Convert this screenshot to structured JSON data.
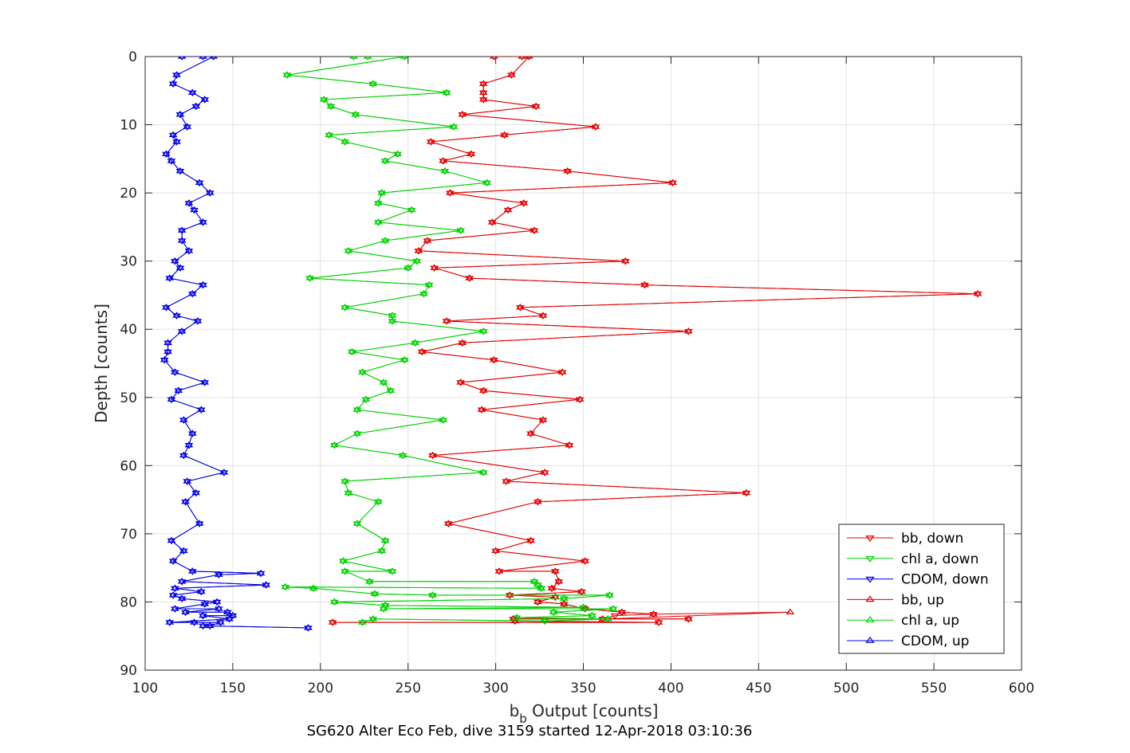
{
  "chart_data": {
    "type": "line",
    "title": "",
    "xlabel_main": "b",
    "xlabel_sub": "b",
    "xlabel_rest": " Output [counts]",
    "ylabel": "Depth [counts]",
    "caption": "SG620 Alter Eco Feb, dive 3159 started 12-Apr-2018 03:10:36",
    "xlim": [
      100,
      600
    ],
    "ylim": [
      0,
      90
    ],
    "y_reversed": true,
    "grid": true,
    "legend_placement": "bottom-right",
    "xticks": [
      "100",
      "150",
      "200",
      "250",
      "300",
      "350",
      "400",
      "450",
      "500",
      "550",
      "600"
    ],
    "yticks": [
      "0",
      "10",
      "20",
      "30",
      "40",
      "50",
      "60",
      "70",
      "80",
      "90"
    ],
    "series": [
      {
        "name": "bb, down",
        "color": "#e00000",
        "marker": "triangle-down",
        "x": [
          299,
          315,
          319,
          309,
          293,
          293,
          293,
          323,
          281,
          357,
          305,
          263,
          286,
          270,
          341,
          401,
          274,
          316,
          307,
          298,
          322,
          261,
          256,
          374,
          265,
          285,
          385,
          575,
          314,
          327,
          272,
          410,
          281,
          258,
          299,
          338,
          280,
          293,
          348,
          292,
          327,
          320,
          342,
          264,
          328,
          306,
          443,
          324,
          273,
          320,
          300,
          351,
          302,
          334,
          336,
          332,
          349,
          308,
          334,
          324,
          339,
          351,
          372,
          390,
          368,
          361,
          410,
          310,
          311,
          393,
          207
        ],
        "y": [
          0,
          0,
          0,
          2.7,
          4,
          5.3,
          6.3,
          7.3,
          8.5,
          10.3,
          11.5,
          12.5,
          14.3,
          15.3,
          16.8,
          18.5,
          20,
          21.5,
          22.5,
          24.3,
          25.5,
          27,
          28.5,
          30,
          31,
          32.5,
          33.5,
          34.8,
          36.8,
          38,
          38.8,
          40.3,
          42,
          43.3,
          44.5,
          46.3,
          47.8,
          49,
          50.3,
          51.8,
          53.3,
          55.3,
          57,
          58.5,
          61,
          62.3,
          64,
          65.3,
          68.5,
          71,
          72.5,
          74,
          75.5,
          75.5,
          77,
          78,
          78.5,
          79,
          79.3,
          80,
          80.3,
          81,
          81.5,
          81.8,
          82,
          82.5,
          82.5,
          82.5,
          82.8,
          83,
          83
        ]
      },
      {
        "name": "chl a, down",
        "color": "#00d000",
        "marker": "triangle-down",
        "x": [
          219,
          227,
          248,
          181,
          230,
          272,
          202,
          206,
          220,
          276,
          205,
          214,
          244,
          237,
          271,
          295,
          235,
          233,
          252,
          233,
          280,
          237,
          216,
          255,
          250,
          194,
          262,
          259,
          214,
          241,
          241,
          293,
          254,
          218,
          248,
          224,
          236,
          240,
          226,
          221,
          270,
          221,
          208,
          247,
          293,
          214,
          216,
          233,
          221,
          237,
          235,
          213,
          241,
          214,
          228,
          322,
          324,
          326,
          326,
          180,
          196,
          231,
          264,
          365,
          339,
          208,
          237,
          350,
          236,
          367,
          333,
          355,
          312,
          364,
          328,
          230,
          224
        ],
        "y": [
          0,
          0,
          0,
          2.7,
          4,
          5.3,
          6.3,
          7.3,
          8.5,
          10.3,
          11.5,
          12.5,
          14.3,
          15.3,
          16.8,
          18.5,
          20,
          21.5,
          22.5,
          24.3,
          25.5,
          27,
          28.5,
          30,
          31,
          32.5,
          33.5,
          34.8,
          36.8,
          38,
          38.8,
          40.3,
          42,
          43.3,
          44.5,
          46.3,
          47.8,
          49,
          50.3,
          51.8,
          53.3,
          55.3,
          57,
          58.5,
          61,
          62.3,
          64,
          65.3,
          68.5,
          71,
          72.5,
          74,
          75.5,
          75.5,
          77,
          77,
          77.5,
          78,
          78,
          77.8,
          78,
          78.8,
          79,
          79,
          79.5,
          80,
          80.5,
          80.8,
          81,
          81,
          81.5,
          82,
          82.3,
          82.5,
          82.8,
          82.5,
          83
        ]
      },
      {
        "name": "CDOM, down",
        "color": "#0000e0",
        "marker": "triangle-down",
        "x": [
          121,
          133,
          139,
          118,
          116,
          127,
          134,
          129,
          120,
          124,
          116,
          118,
          112,
          115,
          120,
          131,
          137,
          125,
          128,
          133,
          121,
          121,
          125,
          117,
          120,
          114,
          133,
          127,
          112,
          118,
          130,
          121,
          113,
          113,
          111,
          117,
          134,
          119,
          115,
          132,
          122,
          127,
          125,
          122,
          145,
          124,
          129,
          123,
          131,
          115,
          122,
          116,
          127,
          166,
          142,
          121,
          169,
          117,
          132,
          116,
          121,
          141,
          134,
          117,
          142,
          123,
          147,
          150,
          133,
          148,
          114,
          128,
          143,
          137,
          133,
          193
        ],
        "y": [
          0,
          0,
          0,
          2.7,
          4,
          5.3,
          6.3,
          7.3,
          8.5,
          10.3,
          11.5,
          12.5,
          14.3,
          15.3,
          16.8,
          18.5,
          20,
          21.5,
          22.5,
          24.3,
          25.5,
          27,
          28.5,
          30,
          31,
          32.5,
          33.5,
          34.8,
          36.8,
          38,
          38.8,
          40.3,
          42,
          43.3,
          44.5,
          46.3,
          47.8,
          49,
          50.3,
          51.8,
          53.3,
          55.3,
          57,
          58.5,
          61,
          62.3,
          64,
          65.3,
          68.5,
          71,
          72.5,
          74,
          75.5,
          75.8,
          76,
          77,
          77.5,
          78,
          78.5,
          79,
          79.5,
          80,
          80.3,
          81,
          81,
          81.5,
          81.5,
          82,
          82,
          82.5,
          83,
          83,
          83,
          83.5,
          83.5,
          83.8
        ]
      },
      {
        "name": "bb, up",
        "color": "#e00000",
        "marker": "triangle-up",
        "x": [
          299,
          315,
          319,
          309,
          293,
          293,
          293,
          323,
          281,
          357,
          305,
          263,
          286,
          270,
          341,
          401,
          274,
          316,
          307,
          298,
          322,
          261,
          256,
          374,
          265,
          285,
          385,
          575,
          314,
          327,
          272,
          410,
          281,
          258,
          299,
          338,
          280,
          293,
          348,
          292,
          327,
          320,
          342,
          264,
          328,
          306,
          443,
          324,
          273,
          320,
          300,
          351,
          302,
          334,
          336,
          332,
          349,
          308,
          334,
          324,
          339,
          351,
          372,
          390,
          468,
          361,
          410,
          310,
          311,
          393,
          207
        ],
        "y": [
          0,
          0,
          0,
          2.7,
          4,
          5.3,
          6.3,
          7.3,
          8.5,
          10.3,
          11.5,
          12.5,
          14.3,
          15.3,
          16.8,
          18.5,
          20,
          21.5,
          22.5,
          24.3,
          25.5,
          27,
          28.5,
          30,
          31,
          32.5,
          33.5,
          34.8,
          36.8,
          38,
          38.8,
          40.3,
          42,
          43.3,
          44.5,
          46.3,
          47.8,
          49,
          50.3,
          51.8,
          53.3,
          55.3,
          57,
          58.5,
          61,
          62.3,
          64,
          65.3,
          68.5,
          71,
          72.5,
          74,
          75.5,
          75.5,
          77,
          78,
          78.5,
          79,
          79.3,
          80,
          80.3,
          81,
          81.5,
          81.8,
          81.5,
          82.5,
          82.5,
          82.5,
          82.8,
          83,
          83
        ]
      },
      {
        "name": "chl a, up",
        "color": "#00d000",
        "marker": "triangle-up",
        "x": [
          219,
          227,
          248,
          181,
          230,
          272,
          202,
          206,
          220,
          276,
          205,
          214,
          244,
          237,
          271,
          295,
          235,
          233,
          252,
          233,
          280,
          237,
          216,
          255,
          250,
          194,
          262,
          259,
          214,
          241,
          241,
          293,
          254,
          218,
          248,
          224,
          236,
          240,
          226,
          221,
          270,
          221,
          208,
          247,
          293,
          214,
          216,
          233,
          221,
          237,
          235,
          213,
          241,
          214,
          228,
          322,
          324,
          326,
          326,
          180,
          196,
          231,
          264,
          365,
          339,
          208,
          237,
          350,
          236,
          367,
          333,
          355,
          312,
          364,
          328,
          230,
          224
        ],
        "y": [
          0,
          0,
          0,
          2.7,
          4,
          5.3,
          6.3,
          7.3,
          8.5,
          10.3,
          11.5,
          12.5,
          14.3,
          15.3,
          16.8,
          18.5,
          20,
          21.5,
          22.5,
          24.3,
          25.5,
          27,
          28.5,
          30,
          31,
          32.5,
          33.5,
          34.8,
          36.8,
          38,
          38.8,
          40.3,
          42,
          43.3,
          44.5,
          46.3,
          47.8,
          49,
          50.3,
          51.8,
          53.3,
          55.3,
          57,
          58.5,
          61,
          62.3,
          64,
          65.3,
          68.5,
          71,
          72.5,
          74,
          75.5,
          75.5,
          77,
          77,
          77.5,
          78,
          78,
          77.8,
          78,
          78.8,
          79,
          79,
          79.5,
          80,
          80.5,
          80.8,
          81,
          81,
          81.5,
          82,
          82.3,
          82.5,
          82.8,
          82.5,
          83
        ]
      },
      {
        "name": "CDOM, up",
        "color": "#0000e0",
        "marker": "triangle-up",
        "x": [
          121,
          133,
          139,
          118,
          116,
          127,
          134,
          129,
          120,
          124,
          116,
          118,
          112,
          115,
          120,
          131,
          137,
          125,
          128,
          133,
          121,
          121,
          125,
          117,
          120,
          114,
          133,
          127,
          112,
          118,
          130,
          121,
          113,
          113,
          111,
          117,
          134,
          119,
          115,
          132,
          122,
          127,
          125,
          122,
          145,
          124,
          129,
          123,
          131,
          115,
          122,
          116,
          127,
          166,
          142,
          121,
          169,
          117,
          132,
          116,
          121,
          141,
          134,
          117,
          142,
          123,
          147,
          150,
          133,
          148,
          114,
          128,
          143,
          137,
          133,
          193
        ],
        "y": [
          0,
          0,
          0,
          2.7,
          4,
          5.3,
          6.3,
          7.3,
          8.5,
          10.3,
          11.5,
          12.5,
          14.3,
          15.3,
          16.8,
          18.5,
          20,
          21.5,
          22.5,
          24.3,
          25.5,
          27,
          28.5,
          30,
          31,
          32.5,
          33.5,
          34.8,
          36.8,
          38,
          38.8,
          40.3,
          42,
          43.3,
          44.5,
          46.3,
          47.8,
          49,
          50.3,
          51.8,
          53.3,
          55.3,
          57,
          58.5,
          61,
          62.3,
          64,
          65.3,
          68.5,
          71,
          72.5,
          74,
          75.5,
          75.8,
          76,
          77,
          77.5,
          78,
          78.5,
          79,
          79.5,
          80,
          80.3,
          81,
          81,
          81.5,
          81.5,
          82,
          82,
          82.5,
          83,
          83,
          83,
          83.5,
          83.5,
          83.8
        ]
      }
    ]
  }
}
